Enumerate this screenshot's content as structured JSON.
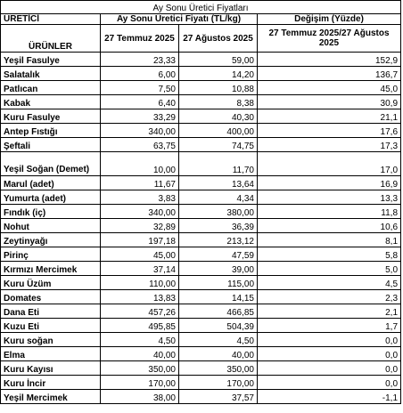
{
  "title": "Ay Sonu Üretici Fiyatları",
  "header": {
    "col1_top": "ÜRETİCİ",
    "col1_bottom": "ÜRÜNLER",
    "price_group": "Ay Sonu Üretici Fiyatı (TL/kg)",
    "change_group": "Değişim (Yüzde)",
    "date1": "27 Temmuz 2025",
    "date2": "27 Ağustos 2025",
    "change_period": "27 Temmuz 2025/27 Ağustos 2025"
  },
  "rows": [
    {
      "name": "Yeşil Fasulye",
      "p1": "23,33",
      "p2": "59,00",
      "chg": "152,9"
    },
    {
      "name": "Salatalık",
      "p1": "6,00",
      "p2": "14,20",
      "chg": "136,7"
    },
    {
      "name": "Patlıcan",
      "p1": "7,50",
      "p2": "10,88",
      "chg": "45,0"
    },
    {
      "name": "Kabak",
      "p1": "6,40",
      "p2": "8,38",
      "chg": "30,9"
    },
    {
      "name": "Kuru Fasulye",
      "p1": "33,29",
      "p2": "40,30",
      "chg": "21,1"
    },
    {
      "name": "Antep Fıstığı",
      "p1": "340,00",
      "p2": "400,00",
      "chg": "17,6"
    },
    {
      "name": "Şeftali",
      "p1": "63,75",
      "p2": "74,75",
      "chg": "17,3"
    },
    {
      "name": "Yeşil Soğan (Demet)",
      "p1": "10,00",
      "p2": "11,70",
      "chg": "17,0",
      "tall": true
    },
    {
      "name": "Marul (adet)",
      "p1": "11,67",
      "p2": "13,64",
      "chg": "16,9"
    },
    {
      "name": "Yumurta (adet)",
      "p1": "3,83",
      "p2": "4,34",
      "chg": "13,3"
    },
    {
      "name": "Fındık (iç)",
      "p1": "340,00",
      "p2": "380,00",
      "chg": "11,8"
    },
    {
      "name": "Nohut",
      "p1": "32,89",
      "p2": "36,39",
      "chg": "10,6"
    },
    {
      "name": "Zeytinyağı",
      "p1": "197,18",
      "p2": "213,12",
      "chg": "8,1"
    },
    {
      "name": "Pirinç",
      "p1": "45,00",
      "p2": "47,59",
      "chg": "5,8"
    },
    {
      "name": "Kırmızı Mercimek",
      "p1": "37,14",
      "p2": "39,00",
      "chg": "5,0"
    },
    {
      "name": "Kuru Üzüm",
      "p1": "110,00",
      "p2": "115,00",
      "chg": "4,5"
    },
    {
      "name": "Domates",
      "p1": "13,83",
      "p2": "14,15",
      "chg": "2,3"
    },
    {
      "name": "Dana Eti",
      "p1": "457,26",
      "p2": "466,85",
      "chg": "2,1"
    },
    {
      "name": "Kuzu Eti",
      "p1": "495,85",
      "p2": "504,39",
      "chg": "1,7"
    },
    {
      "name": "Kuru soğan",
      "p1": "4,50",
      "p2": "4,50",
      "chg": "0,0"
    },
    {
      "name": "Elma",
      "p1": "40,00",
      "p2": "40,00",
      "chg": "0,0"
    },
    {
      "name": "Kuru Kayısı",
      "p1": "350,00",
      "p2": "350,00",
      "chg": "0,0"
    },
    {
      "name": "Kuru İncir",
      "p1": "170,00",
      "p2": "170,00",
      "chg": "0,0"
    },
    {
      "name": "Yeşil Mercimek",
      "p1": "38,00",
      "p2": "37,57",
      "chg": "-1,1"
    }
  ]
}
